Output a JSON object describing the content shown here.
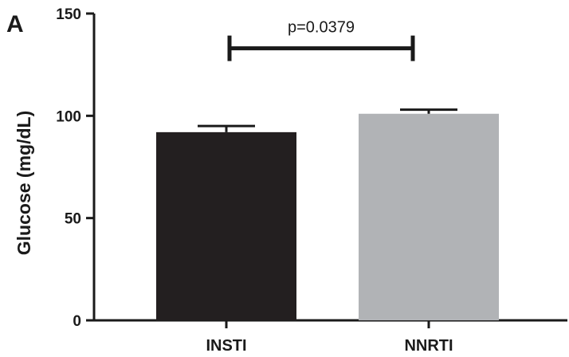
{
  "chart_data": {
    "type": "bar",
    "panel_label": "A",
    "title": "",
    "xlabel": "",
    "ylabel": "Glucose (mg/dL)",
    "ylim": [
      0,
      150
    ],
    "yticks": [
      0,
      50,
      100,
      150
    ],
    "categories": [
      "INSTI",
      "NNRTI"
    ],
    "values": [
      92,
      101
    ],
    "error_upper": [
      95,
      103
    ],
    "bar_colors": [
      "#231f20",
      "#b1b3b6"
    ],
    "annotation": {
      "text": "p=0.0379",
      "between": [
        "INSTI",
        "NNRTI"
      ],
      "y": 133
    },
    "grid": false,
    "legend": "none"
  }
}
